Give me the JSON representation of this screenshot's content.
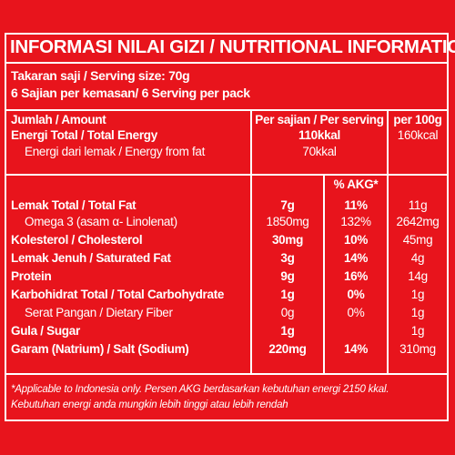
{
  "title": "INFORMASI NILAI GIZI / NUTRITIONAL INFORMATION",
  "serving_size": "Takaran saji / Serving size: 70g",
  "servings_per_pack": "6 Sajian per kemasan/ 6 Serving per pack",
  "headers": {
    "amount": "Jumlah / Amount",
    "per_serving": "Per sajian / Per serving",
    "per_100g": "per 100g",
    "akg": "% AKG*"
  },
  "energy": {
    "total_label": "Energi Total / Total Energy",
    "total_serving": "110kkal",
    "total_100g": "160kcal",
    "fat_label": "Energi dari lemak / Energy from fat",
    "fat_serving": "70kkal"
  },
  "rows": [
    {
      "label": "Lemak Total / Total Fat",
      "serving": "7g",
      "akg": "11%",
      "per100": "11g",
      "bold": true
    },
    {
      "label": "Omega 3 (asam α- Linolenat)",
      "serving": "1850mg",
      "akg": "132%",
      "per100": "2642mg",
      "bold": false
    },
    {
      "label": "Kolesterol / Cholesterol",
      "serving": "30mg",
      "akg": "10%",
      "per100": "45mg",
      "bold": true
    },
    {
      "label": "Lemak Jenuh / Saturated Fat",
      "serving": "3g",
      "akg": "14%",
      "per100": "4g",
      "bold": true
    },
    {
      "label": "Protein",
      "serving": "9g",
      "akg": "16%",
      "per100": "14g",
      "bold": true
    },
    {
      "label": "Karbohidrat Total / Total Carbohydrate",
      "serving": "1g",
      "akg": "0%",
      "per100": "1g",
      "bold": true
    },
    {
      "label": "Serat Pangan / Dietary Fiber",
      "serving": "0g",
      "akg": "0%",
      "per100": "1g",
      "bold": false
    },
    {
      "label": "Gula / Sugar",
      "serving": "1g",
      "akg": "",
      "per100": "1g",
      "bold": true
    },
    {
      "label": "Garam (Natrium) / Salt (Sodium)",
      "serving": "220mg",
      "akg": "14%",
      "per100": "310mg",
      "bold": true
    }
  ],
  "footnote_line1": "*Applicable to Indonesia only. Persen AKG berdasarkan kebutuhan energi 2150 kkal.",
  "footnote_line2": "Kebutuhan energi anda mungkin lebih tinggi atau lebih rendah"
}
